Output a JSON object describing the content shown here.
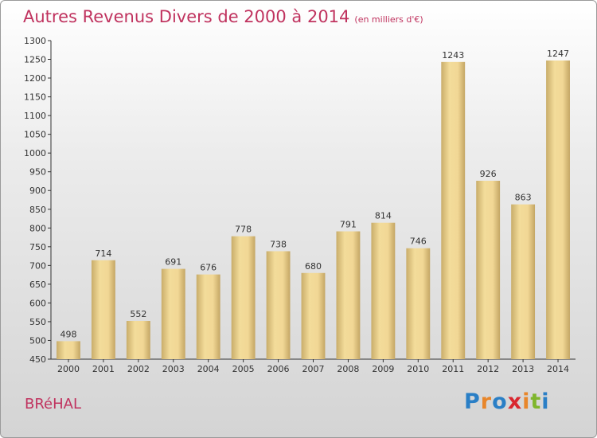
{
  "header": {
    "title": "Autres Revenus Divers de 2000 à 2014",
    "subtitle": "(en milliers d'€)"
  },
  "footer": {
    "location": "BRéHAL",
    "logo_text": "Proxiti",
    "logo_colors": [
      "#2a7fc6",
      "#e8862a",
      "#2a7fc6",
      "#d9262f",
      "#e8862a",
      "#7fb62d",
      "#2a7fc6"
    ]
  },
  "colors": {
    "title": "#c0335f",
    "bar_light": "#f3dc9a",
    "bar_dark": "#c9ad6a"
  },
  "chart_data": {
    "type": "bar",
    "title": "Autres Revenus Divers de 2000 à 2014",
    "subtitle": "(en milliers d'€)",
    "xlabel": "",
    "ylabel": "",
    "categories": [
      "2000",
      "2001",
      "2002",
      "2003",
      "2004",
      "2005",
      "2006",
      "2007",
      "2008",
      "2009",
      "2010",
      "2011",
      "2012",
      "2013",
      "2014"
    ],
    "values": [
      498,
      714,
      552,
      691,
      676,
      778,
      738,
      680,
      791,
      814,
      746,
      1243,
      926,
      863,
      1247
    ],
    "ylim": [
      450,
      1300
    ],
    "yticks": [
      450,
      500,
      550,
      600,
      650,
      700,
      750,
      800,
      850,
      900,
      950,
      1000,
      1050,
      1100,
      1150,
      1200,
      1250,
      1300
    ],
    "grid": false,
    "legend": "none"
  }
}
